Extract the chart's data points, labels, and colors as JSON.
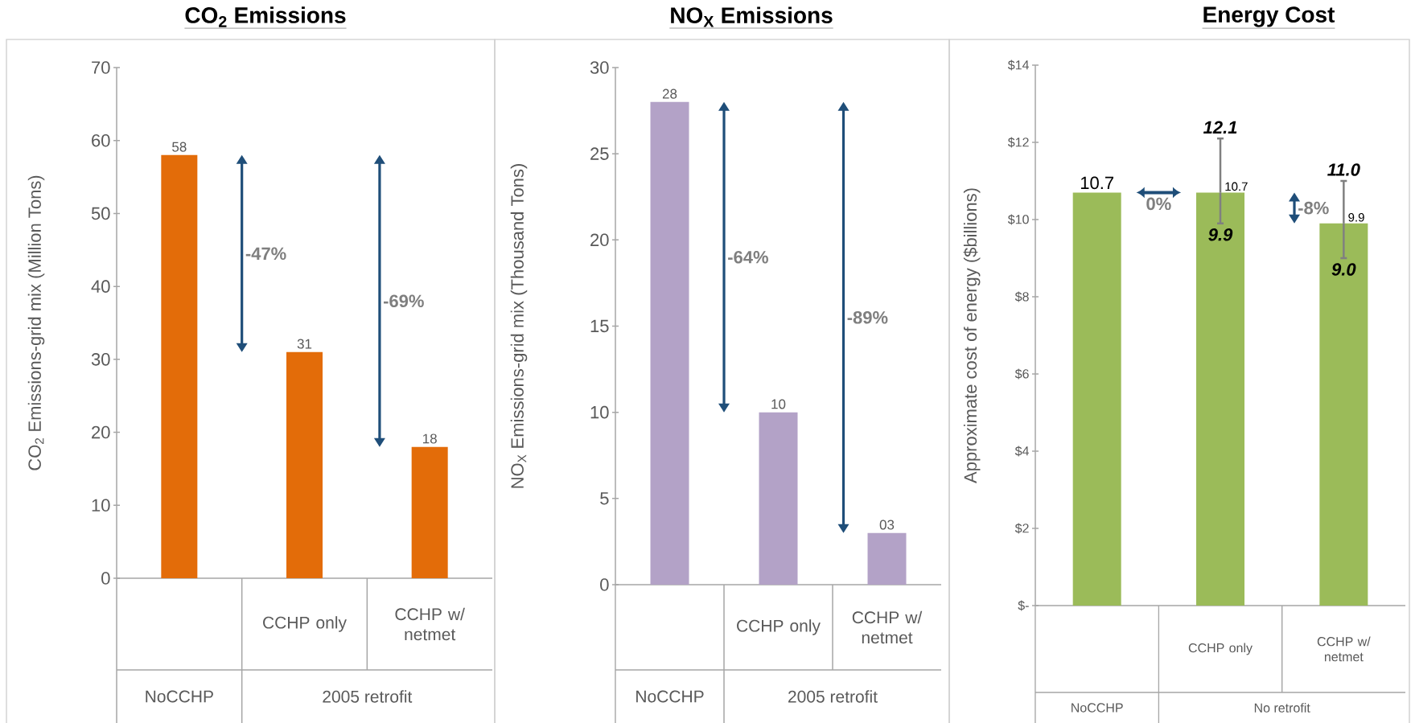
{
  "chart_data": [
    {
      "type": "bar",
      "title": "CO$_{2}$ Emissions",
      "ylabel": "CO$_{2}$ Emissions-grid mix (Million Tons)",
      "categories": [
        null,
        "CCHP only",
        "CCHP w/ netmet"
      ],
      "values": [
        58,
        31,
        18
      ],
      "value_labels": [
        "58",
        "31",
        "18"
      ],
      "color": "#e36c09",
      "ylim": [
        0,
        70
      ],
      "yticks": [
        0,
        10,
        20,
        30,
        40,
        50,
        60,
        70
      ],
      "annotations": [
        "NoCCHP",
        "2005 retrofit",
        "-47%",
        "-69%"
      ]
    },
    {
      "type": "bar",
      "title": "NO$_{X}$ Emissions",
      "ylabel": "NO$_{X}$ Emissions-grid mix (Thousand Tons)",
      "categories": [
        null,
        "CCHP only",
        "CCHP w/ netmet"
      ],
      "values": [
        28,
        10,
        3
      ],
      "value_labels": [
        "28",
        "10",
        "03"
      ],
      "color": "#b3a2c7",
      "ylim": [
        0,
        30
      ],
      "yticks": [
        0,
        5,
        10,
        15,
        20,
        25,
        30
      ],
      "annotations": [
        "NoCCHP",
        "2005 retrofit",
        "-64%",
        "-89%"
      ]
    },
    {
      "type": "bar",
      "title": "Energy Cost",
      "ylabel": "Approximate  cost of energy ($billions)",
      "categories": [
        null,
        "CCHP only",
        "CCHP w/ netmet"
      ],
      "values": [
        10.7,
        10.7,
        9.9
      ],
      "value_labels": [
        "10.7",
        "10.7",
        "9.9"
      ],
      "errors": [
        null,
        [
          9.9,
          12.1
        ],
        [
          9.0,
          11.0
        ]
      ],
      "color": "#9bbb59",
      "ylim": [
        0,
        14
      ],
      "yticks": [
        {
          "value": 0,
          "label": "$-"
        },
        {
          "value": 2,
          "label": "$2"
        },
        {
          "value": 4,
          "label": "$4"
        },
        {
          "value": 6,
          "label": "$6"
        },
        {
          "value": 8,
          "label": "$8"
        },
        {
          "value": 10,
          "label": "$10"
        },
        {
          "value": 12,
          "label": "$12"
        },
        {
          "value": 14,
          "label": "$14"
        }
      ],
      "annotations": [
        "NoCCHP",
        "No  retrofit",
        "0%",
        "-8%",
        {
          "text": "12.1",
          "x": "CCHP only",
          "y": 12.1
        },
        {
          "text": "9.9",
          "x": "CCHP only",
          "y": 9.9
        },
        {
          "text": "11.0",
          "x": "CCHP w/ netmet",
          "y": 11.0
        },
        {
          "text": "9.0",
          "x": "CCHP w/ netmet",
          "y": 9.0
        }
      ]
    }
  ]
}
